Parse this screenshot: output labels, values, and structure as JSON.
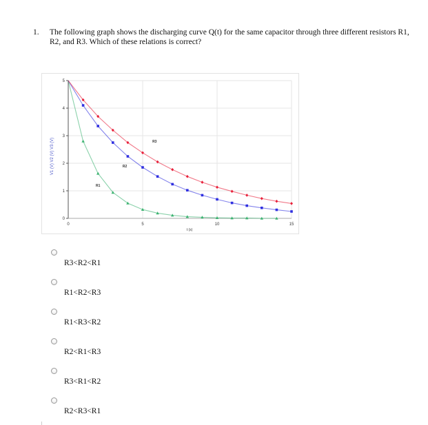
{
  "question": {
    "number": "1.",
    "text": "The following graph shows the discharging curve Q(t) for the same capacitor through three different resistors R1, R2, and R3.  Which of these relations is correct?"
  },
  "chart_data": {
    "type": "line",
    "xlabel": "t (s)",
    "ylabel": "V1 (V)   V2 (V)   V3 (V)",
    "xlim": [
      0,
      15
    ],
    "ylim": [
      0,
      5
    ],
    "x_ticks": [
      "0",
      "5",
      "10",
      "15"
    ],
    "y_ticks": [
      "0",
      "1",
      "2",
      "3",
      "4",
      "5"
    ],
    "grid": true,
    "series": [
      {
        "name": "R1",
        "color": "#3cb371",
        "marker": "triangle",
        "x": [
          0,
          1,
          2,
          3,
          4,
          5,
          6,
          7,
          8,
          9,
          10,
          11,
          12,
          13,
          14
        ],
        "y": [
          5,
          2.8,
          1.63,
          0.94,
          0.55,
          0.32,
          0.19,
          0.11,
          0.06,
          0.04,
          0.02,
          0.01,
          0.01,
          0.0,
          0.0
        ]
      },
      {
        "name": "R2",
        "color": "#3030e0",
        "marker": "square",
        "x": [
          0,
          1,
          2,
          3,
          4,
          5,
          6,
          7,
          8,
          9,
          10,
          11,
          12,
          13,
          14,
          15
        ],
        "y": [
          5,
          4.1,
          3.35,
          2.75,
          2.25,
          1.85,
          1.52,
          1.24,
          1.02,
          0.84,
          0.69,
          0.56,
          0.46,
          0.38,
          0.31,
          0.25
        ]
      },
      {
        "name": "R3",
        "color": "#e8203a",
        "marker": "diamond",
        "x": [
          0,
          1,
          2,
          3,
          4,
          5,
          6,
          7,
          8,
          9,
          10,
          11,
          12,
          13,
          14,
          15
        ],
        "y": [
          5,
          4.3,
          3.7,
          3.2,
          2.75,
          2.38,
          2.05,
          1.77,
          1.52,
          1.31,
          1.13,
          0.98,
          0.84,
          0.72,
          0.62,
          0.54
        ]
      }
    ],
    "annotations": [
      {
        "text": "R1",
        "x": 2.0,
        "y": 1.15
      },
      {
        "text": "R2",
        "x": 3.8,
        "y": 1.85
      },
      {
        "text": "R3",
        "x": 5.8,
        "y": 2.75
      }
    ]
  },
  "options": [
    {
      "label": "R3<R2<R1"
    },
    {
      "label": "R1<R2<R3"
    },
    {
      "label": "R1<R3<R2"
    },
    {
      "label": "R2<R1<R3"
    },
    {
      "label": "R3<R1<R2"
    },
    {
      "label": "R2<R3<R1"
    }
  ]
}
